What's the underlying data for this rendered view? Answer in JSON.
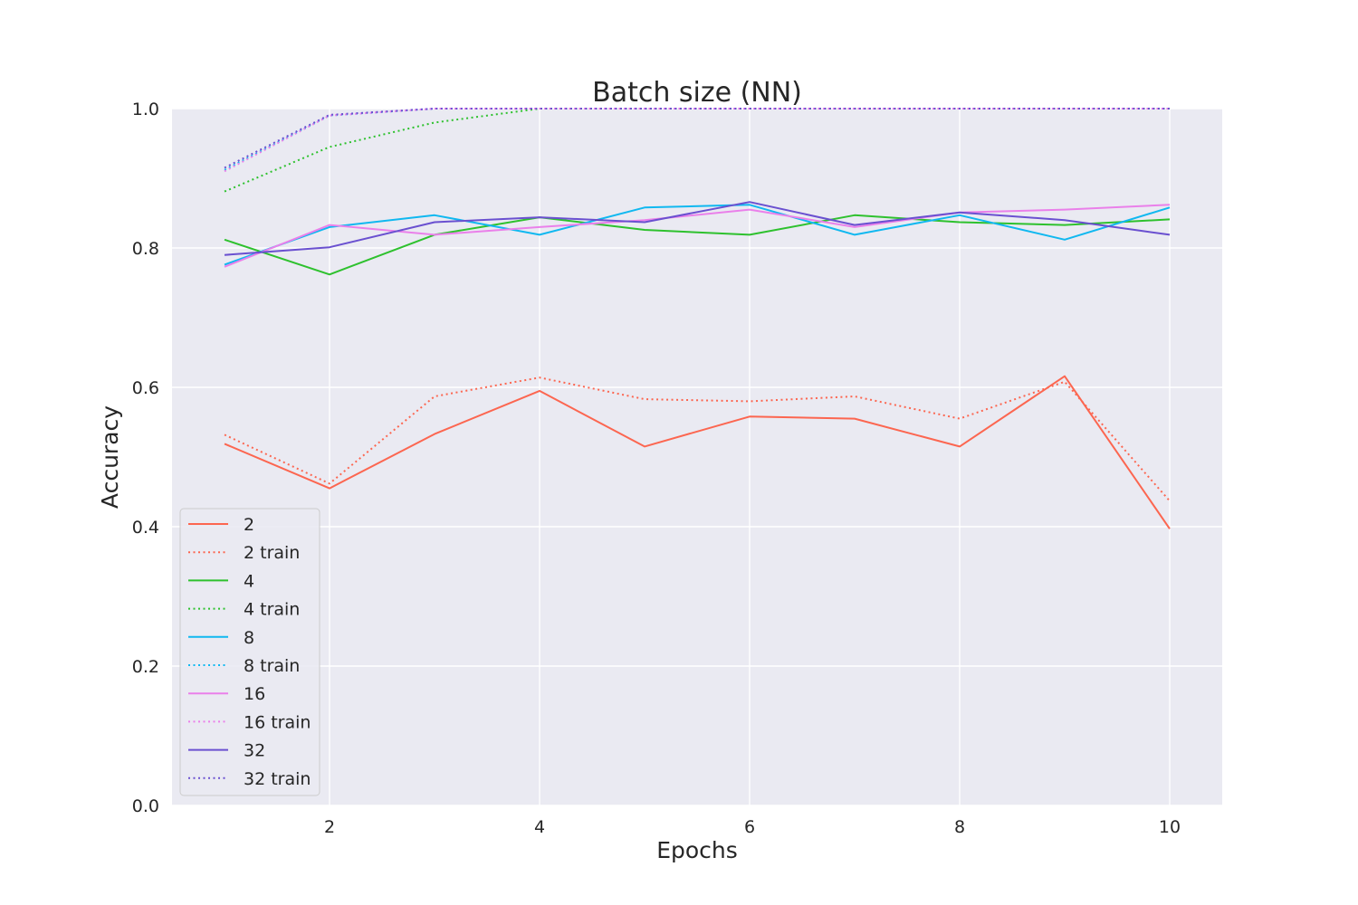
{
  "chart_data": {
    "type": "line",
    "title": "Batch size (NN)",
    "xlabel": "Epochs",
    "ylabel": "Accuracy",
    "xlim": [
      0.5,
      10.5
    ],
    "ylim": [
      0.0,
      1.0
    ],
    "xticks": [
      2,
      4,
      6,
      8,
      10
    ],
    "yticks": [
      0.0,
      0.2,
      0.4,
      0.6,
      0.8,
      1.0
    ],
    "x": [
      1,
      2,
      3,
      4,
      5,
      6,
      7,
      8,
      9,
      10
    ],
    "grid": true,
    "legend_position": "lower-left",
    "series": [
      {
        "name": "2",
        "style": "solid",
        "color": "#fc6650",
        "values": [
          0.519,
          0.455,
          0.533,
          0.595,
          0.515,
          0.558,
          0.555,
          0.515,
          0.616,
          0.397
        ]
      },
      {
        "name": "2 train",
        "style": "dotted",
        "color": "#fc6650",
        "values": [
          0.532,
          0.462,
          0.587,
          0.614,
          0.583,
          0.58,
          0.587,
          0.555,
          0.608,
          0.437
        ]
      },
      {
        "name": "4",
        "style": "solid",
        "color": "#2ec12e",
        "values": [
          0.812,
          0.762,
          0.819,
          0.844,
          0.826,
          0.819,
          0.847,
          0.837,
          0.833,
          0.841
        ]
      },
      {
        "name": "4 train",
        "style": "dotted",
        "color": "#2ec12e",
        "values": [
          0.881,
          0.945,
          0.98,
          1.0,
          1.0,
          1.0,
          1.0,
          1.0,
          1.0,
          1.0
        ]
      },
      {
        "name": "8",
        "style": "solid",
        "color": "#10b8f0",
        "values": [
          0.776,
          0.83,
          0.847,
          0.819,
          0.858,
          0.862,
          0.819,
          0.847,
          0.812,
          0.858
        ]
      },
      {
        "name": "8 train",
        "style": "dotted",
        "color": "#10b8f0",
        "values": [
          0.912,
          0.99,
          1.0,
          1.0,
          1.0,
          1.0,
          1.0,
          1.0,
          1.0,
          1.0
        ]
      },
      {
        "name": "16",
        "style": "solid",
        "color": "#ea80ea",
        "values": [
          0.773,
          0.833,
          0.819,
          0.83,
          0.84,
          0.855,
          0.83,
          0.851,
          0.855,
          0.862
        ]
      },
      {
        "name": "16 train",
        "style": "dotted",
        "color": "#ea80ea",
        "values": [
          0.91,
          0.99,
          1.0,
          1.0,
          1.0,
          1.0,
          1.0,
          1.0,
          1.0,
          1.0
        ]
      },
      {
        "name": "32",
        "style": "solid",
        "color": "#6a50d0",
        "values": [
          0.79,
          0.801,
          0.837,
          0.844,
          0.837,
          0.866,
          0.833,
          0.851,
          0.84,
          0.819
        ]
      },
      {
        "name": "32 train",
        "style": "dotted",
        "color": "#6a50d0",
        "values": [
          0.915,
          0.991,
          1.0,
          1.0,
          1.0,
          1.0,
          1.0,
          1.0,
          1.0,
          1.0
        ]
      }
    ]
  }
}
